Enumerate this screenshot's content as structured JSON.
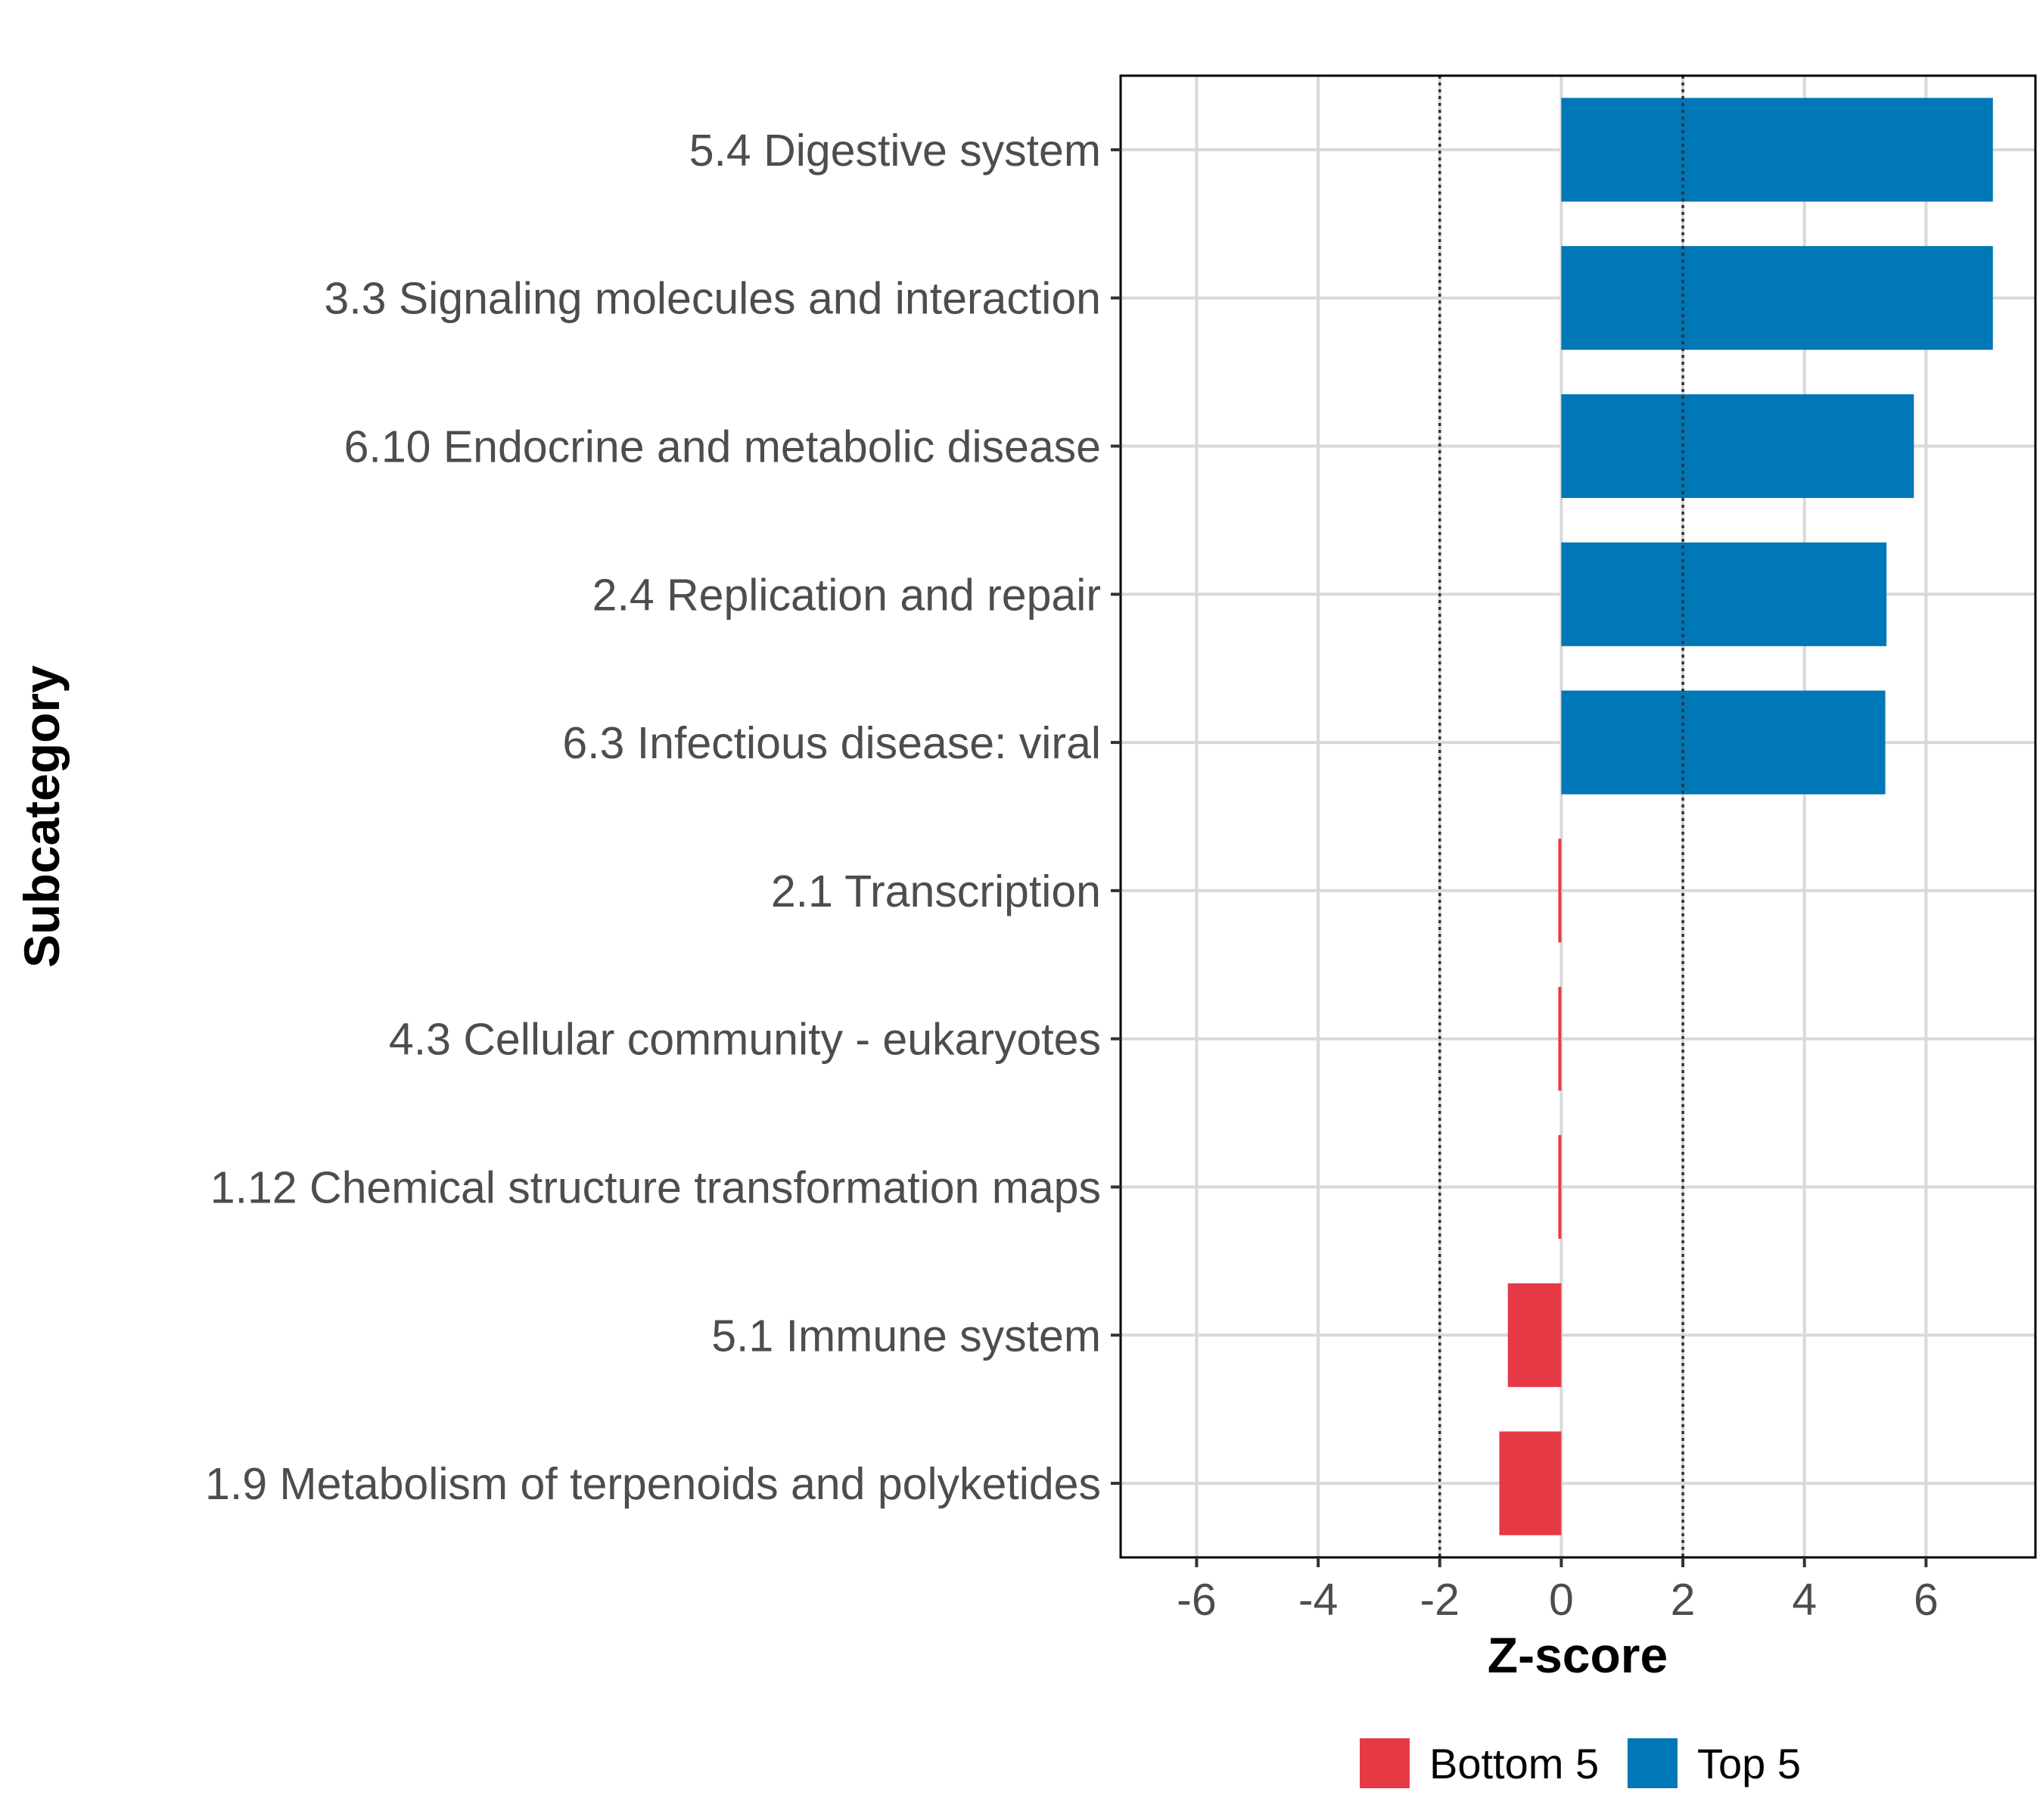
{
  "chart_data": {
    "type": "bar",
    "orientation": "horizontal",
    "title": "",
    "xlabel": "Z-score",
    "ylabel": "Subcategory",
    "xlim": [
      -7.25,
      7.8
    ],
    "xticks": [
      -6,
      -4,
      -2,
      0,
      2,
      4,
      6
    ],
    "xtick_labels": [
      "-6",
      "-4",
      "-2",
      "0",
      "2",
      "4",
      "6"
    ],
    "reference_lines": [
      -2,
      2
    ],
    "grid": true,
    "categories": [
      "5.4 Digestive system",
      "3.3 Signaling molecules and interaction",
      "6.10 Endocrine and metabolic disease",
      "2.4 Replication and repair",
      "6.3 Infectious disease: viral",
      "2.1 Transcription",
      "4.3 Cellular community - eukaryotes",
      "1.12 Chemical structure transformation maps",
      "5.1 Immune system",
      "1.9 Metabolism of terpenoids and polyketides"
    ],
    "values": [
      7.1,
      7.1,
      5.8,
      5.35,
      5.33,
      -0.02,
      -0.03,
      -0.04,
      -0.88,
      -1.02
    ],
    "groups": [
      "Top 5",
      "Top 5",
      "Top 5",
      "Top 5",
      "Top 5",
      "Bottom 5",
      "Bottom 5",
      "Bottom 5",
      "Bottom 5",
      "Bottom 5"
    ],
    "legend": {
      "placement": "bottom",
      "entries": [
        {
          "label": "Bottom 5",
          "color": "#E63946"
        },
        {
          "label": "Top 5",
          "color": "#0077B6"
        }
      ]
    }
  }
}
